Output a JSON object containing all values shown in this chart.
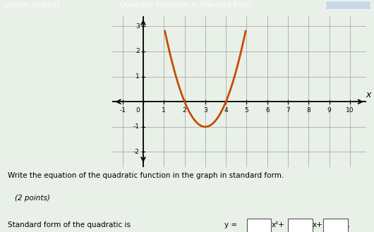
{
  "title_left": "unction Analysis",
  "title_right": "Quadratic Functions in Standard Form",
  "parabola_color": "#c84b00",
  "parabola_a": 1,
  "parabola_b": -6,
  "parabola_c": 8,
  "x_min": -1,
  "x_max": 10,
  "y_min": -2,
  "y_max": 3,
  "x_ticks": [
    -1,
    0,
    1,
    2,
    3,
    4,
    5,
    6,
    7,
    8,
    9,
    10
  ],
  "y_ticks": [
    -2,
    -1,
    1,
    2,
    3
  ],
  "write_text": "Write the equation of the quadratic function in the graph in standard form.",
  "points_text": "(2 points)",
  "standard_form_label": "Standard form of the quadratic is ",
  "header_bg": "#4a86c8",
  "grid_color": "#aaaaaa",
  "wave_bg": "#e8f0e8",
  "text_bg": "#d8e8d8",
  "axis_color": "#000000",
  "parabola_x_start": 1.05,
  "parabola_x_end": 4.95
}
